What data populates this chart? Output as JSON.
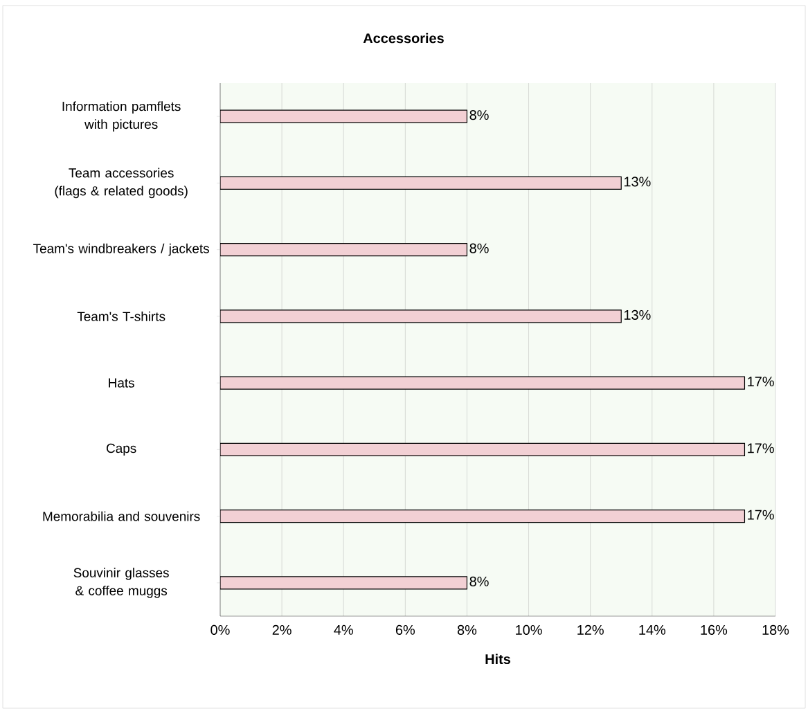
{
  "chart_data": {
    "type": "bar",
    "orientation": "horizontal",
    "title": "Accessories",
    "xlabel": "Hits",
    "categories": [
      "Information pamflets with pictures",
      "Team accessories (flags & related goods)",
      "Team's windbreakers / jackets",
      "Team's T-shirts",
      "Hats",
      "Caps",
      "Memorabilia and souvenirs",
      "Souvinir glasses & coffee muggs"
    ],
    "values": [
      8,
      13,
      8,
      13,
      17,
      17,
      17,
      8
    ],
    "value_labels": [
      "8%",
      "13%",
      "8%",
      "13%",
      "17%",
      "17%",
      "17%",
      "8%"
    ],
    "color": "#f2d0d4",
    "xlim": [
      0,
      18
    ],
    "xticks": [
      {
        "value": 0,
        "label": "0%"
      },
      {
        "value": 2,
        "label": "2%"
      },
      {
        "value": 4,
        "label": "4%"
      },
      {
        "value": 6,
        "label": "6%"
      },
      {
        "value": 8,
        "label": "8%"
      },
      {
        "value": 10,
        "label": "10%"
      },
      {
        "value": 12,
        "label": "12%"
      },
      {
        "value": 14,
        "label": "14%"
      },
      {
        "value": 16,
        "label": "16%"
      },
      {
        "value": 18,
        "label": "18%"
      }
    ],
    "grid": "x"
  }
}
